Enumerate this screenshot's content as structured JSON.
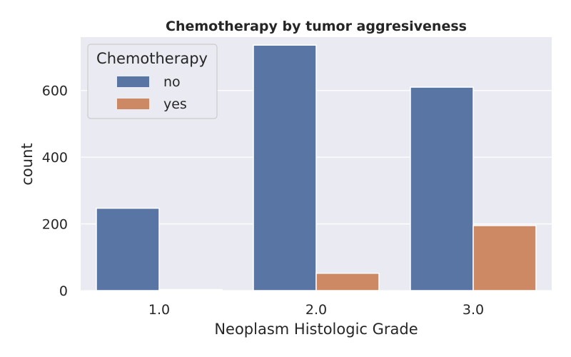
{
  "chart_data": {
    "type": "bar",
    "title": "Chemotherapy by tumor aggresiveness",
    "xlabel": "Neoplasm Histologic Grade",
    "ylabel": "count",
    "categories": [
      "1.0",
      "2.0",
      "3.0"
    ],
    "series": [
      {
        "name": "no",
        "values": [
          247,
          736,
          610
        ],
        "color": "#5875a4"
      },
      {
        "name": "yes",
        "values": [
          3,
          52,
          195
        ],
        "color": "#cc8963"
      }
    ],
    "ylim": [
      0,
      760
    ],
    "yticks": [
      0,
      200,
      400,
      600
    ],
    "grid": true,
    "legend": {
      "title": "Chemotherapy",
      "placement": "top-left"
    }
  }
}
